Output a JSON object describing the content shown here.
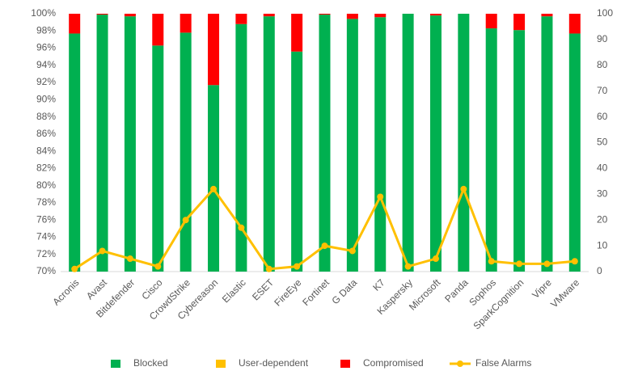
{
  "chart_data": {
    "type": "bar",
    "categories": [
      "Acronis",
      "Avast",
      "Bitdefender",
      "Cisco",
      "CrowdStrike",
      "Cybereason",
      "Elastic",
      "ESET",
      "FireEye",
      "Fortinet",
      "G Data",
      "K7",
      "Kaspersky",
      "Microsoft",
      "Panda",
      "Sophos",
      "SparkCognition",
      "Vipre",
      "VMware"
    ],
    "series": [
      {
        "name": "Blocked",
        "color": "#00b050",
        "values": [
          97.7,
          99.9,
          99.7,
          96.3,
          97.8,
          91.7,
          98.8,
          99.7,
          95.6,
          99.9,
          99.4,
          99.6,
          100,
          99.8,
          100,
          98.3,
          98.1,
          99.7,
          97.7
        ]
      },
      {
        "name": "User-dependent",
        "color": "#ffc000",
        "values": [
          0,
          0,
          0,
          0,
          0,
          0,
          0,
          0,
          0,
          0,
          0,
          0,
          0,
          0,
          0,
          0,
          0,
          0,
          0
        ]
      },
      {
        "name": "Compromised",
        "color": "#ff0000",
        "values": [
          2.3,
          0.1,
          0.3,
          3.7,
          2.2,
          8.3,
          1.2,
          0.3,
          4.4,
          0.1,
          0.6,
          0.4,
          0,
          0.2,
          0,
          1.7,
          1.9,
          0.3,
          2.3
        ]
      },
      {
        "name": "False Alarms",
        "color": "#ffc000",
        "type": "line",
        "axis": "y2",
        "values": [
          1,
          8,
          5,
          2,
          20,
          32,
          17,
          1,
          2,
          10,
          8,
          29,
          2,
          5,
          32,
          4,
          3,
          3,
          4
        ]
      }
    ],
    "stacked": true,
    "ylim": [
      70,
      100
    ],
    "yticks": [
      {
        "value": 70,
        "label": "70%"
      },
      {
        "value": 72,
        "label": "72%"
      },
      {
        "value": 74,
        "label": "74%"
      },
      {
        "value": 76,
        "label": "76%"
      },
      {
        "value": 78,
        "label": "78%"
      },
      {
        "value": 80,
        "label": "80%"
      },
      {
        "value": 82,
        "label": "82%"
      },
      {
        "value": 84,
        "label": "84%"
      },
      {
        "value": 86,
        "label": "86%"
      },
      {
        "value": 88,
        "label": "88%"
      },
      {
        "value": 90,
        "label": "90%"
      },
      {
        "value": 92,
        "label": "92%"
      },
      {
        "value": 94,
        "label": "94%"
      },
      {
        "value": 96,
        "label": "96%"
      },
      {
        "value": 98,
        "label": "98%"
      },
      {
        "value": 100,
        "label": "100%"
      }
    ],
    "y2lim": [
      0,
      100
    ],
    "y2ticks": [
      0,
      10,
      20,
      30,
      40,
      50,
      60,
      70,
      80,
      90,
      100
    ],
    "legend": "bottom"
  }
}
